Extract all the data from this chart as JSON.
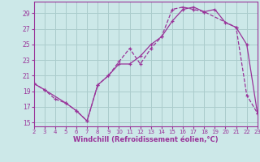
{
  "xlabel": "Windchill (Refroidissement éolien,°C)",
  "background_color": "#cce8e8",
  "grid_color": "#aacccc",
  "line_color": "#993399",
  "xlim": [
    2,
    23
  ],
  "ylim": [
    14.5,
    30.5
  ],
  "xticks": [
    2,
    3,
    4,
    5,
    6,
    7,
    8,
    9,
    10,
    11,
    12,
    13,
    14,
    15,
    16,
    17,
    18,
    19,
    20,
    21,
    22,
    23
  ],
  "yticks": [
    15,
    17,
    19,
    21,
    23,
    25,
    27,
    29
  ],
  "line1_x": [
    2,
    3,
    4,
    5,
    6,
    7,
    8,
    9,
    10,
    11,
    12,
    13,
    14,
    15,
    16,
    17,
    18,
    21,
    22,
    23
  ],
  "line1_y": [
    20.0,
    19.2,
    18.0,
    17.5,
    16.5,
    15.2,
    19.8,
    21.0,
    22.8,
    24.5,
    22.5,
    24.5,
    26.0,
    29.5,
    29.8,
    29.5,
    29.2,
    27.2,
    18.5,
    16.2
  ],
  "line2_x": [
    2,
    3,
    5,
    6,
    7,
    8,
    9,
    10,
    11,
    12,
    13,
    14,
    15,
    16,
    17,
    18,
    19,
    20,
    21,
    22,
    23
  ],
  "line2_y": [
    20.0,
    19.2,
    17.5,
    16.5,
    15.2,
    19.8,
    21.0,
    22.5,
    22.5,
    23.5,
    25.0,
    26.0,
    28.0,
    29.5,
    29.8,
    29.2,
    29.5,
    27.8,
    27.2,
    25.0,
    16.2
  ]
}
